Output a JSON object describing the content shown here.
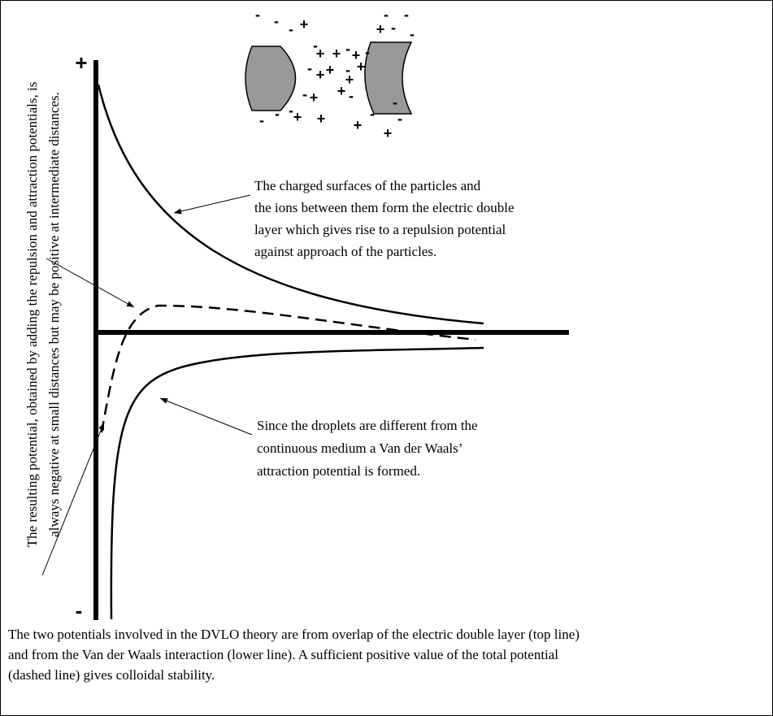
{
  "axis": {
    "plus": "+",
    "minus": "-"
  },
  "ion_signs": {
    "positive": "+",
    "negative": "-"
  },
  "repulsion_note": [
    "The charged surfaces of the particles and",
    "the ions between them form the electric double",
    "layer which gives rise to a repulsion potential",
    "against approach of the particles."
  ],
  "attraction_note": [
    "Since the droplets are different from the",
    "continuous medium a Van der Waals’",
    "attraction potential is formed."
  ],
  "resulting_note": [
    "The resulting potential, obtained by adding the repulsion and attraction potentials, is",
    "always negative at small distances but may be positive at intermediate distances."
  ],
  "caption": [
    "The two potentials involved in the DVLO theory are from overlap of the electric double layer (top line)",
    "and from the Van der Waals interaction (lower line). A sufficient positive value of the total potential",
    "(dashed line) gives colloidal stability."
  ]
}
